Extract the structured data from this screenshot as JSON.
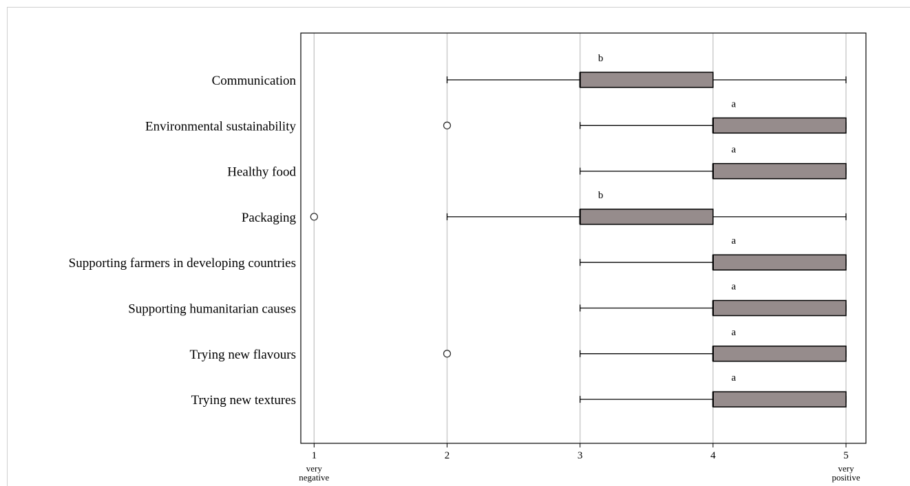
{
  "chart_data": {
    "type": "boxplot",
    "orientation": "horizontal",
    "xlim": [
      0.9,
      5.15
    ],
    "x_ticks": [
      1,
      2,
      3,
      4,
      5
    ],
    "x_tick_sublabels": {
      "1": "very negative",
      "5": "very positive"
    },
    "grid": "vertical",
    "box_color": "#968c8c",
    "categories": [
      {
        "label": "Communication",
        "whisker_low": 2,
        "q1": 3,
        "median": 3,
        "q3": 4,
        "whisker_high": 5,
        "outliers": [],
        "letter": "b"
      },
      {
        "label": "Environmental sustainability",
        "whisker_low": 3,
        "q1": 4,
        "median": 4,
        "q3": 5,
        "whisker_high": 5,
        "outliers": [
          2
        ],
        "letter": "a"
      },
      {
        "label": "Healthy food",
        "whisker_low": 3,
        "q1": 4,
        "median": 4,
        "q3": 5,
        "whisker_high": 5,
        "outliers": [],
        "letter": "a"
      },
      {
        "label": "Packaging",
        "whisker_low": 2,
        "q1": 3,
        "median": 3,
        "q3": 4,
        "whisker_high": 5,
        "outliers": [
          1
        ],
        "letter": "b"
      },
      {
        "label": "Supporting farmers in developing countries",
        "whisker_low": 3,
        "q1": 4,
        "median": 4,
        "q3": 5,
        "whisker_high": 5,
        "outliers": [],
        "letter": "a"
      },
      {
        "label": "Supporting humanitarian causes",
        "whisker_low": 3,
        "q1": 4,
        "median": 4,
        "q3": 5,
        "whisker_high": 5,
        "outliers": [],
        "letter": "a"
      },
      {
        "label": "Trying new flavours",
        "whisker_low": 3,
        "q1": 4,
        "median": 4,
        "q3": 5,
        "whisker_high": 5,
        "outliers": [
          2
        ],
        "letter": "a"
      },
      {
        "label": "Trying new textures",
        "whisker_low": 3,
        "q1": 4,
        "median": 4,
        "q3": 5,
        "whisker_high": 5,
        "outliers": [],
        "letter": "a"
      }
    ]
  }
}
